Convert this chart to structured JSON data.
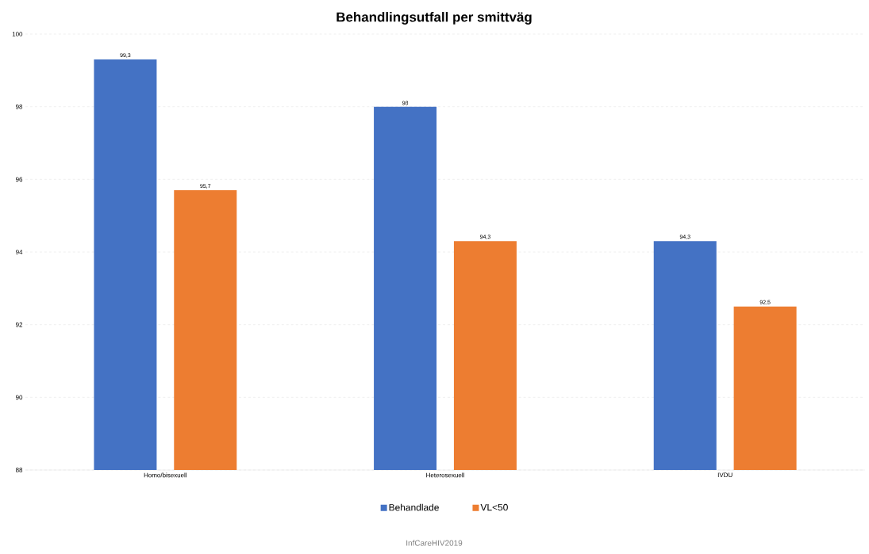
{
  "chart_data": {
    "type": "bar",
    "title": "Behandlingsutfall per smittväg",
    "categories": [
      "Homo/bisexuell",
      "Heterosexuell",
      "IVDU"
    ],
    "series": [
      {
        "name": "Behandlade",
        "color": "#4472c4",
        "values": [
          99.3,
          98,
          94.3
        ],
        "value_labels": [
          "99,3",
          "98",
          "94,3"
        ]
      },
      {
        "name": "VL<50",
        "color": "#ed7d31",
        "values": [
          95.7,
          94.3,
          92.5
        ],
        "value_labels": [
          "95,7",
          "94,3",
          "92,5"
        ]
      }
    ],
    "ylim": [
      88,
      100
    ],
    "yticks": [
      88,
      90,
      92,
      94,
      96,
      98,
      100
    ],
    "grid": "y",
    "legend": "bottom",
    "annotations": [
      "InfCareHIV2019"
    ]
  }
}
